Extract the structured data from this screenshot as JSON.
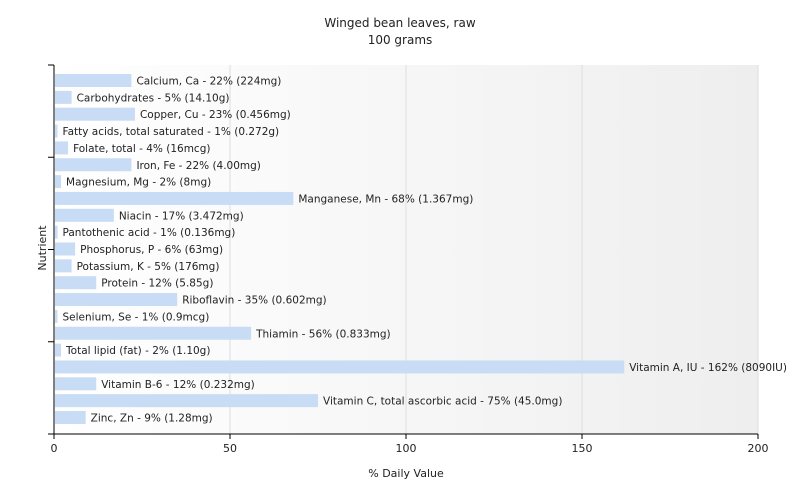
{
  "chart_data": {
    "type": "bar",
    "orientation": "horizontal",
    "title": "Winged bean leaves, raw",
    "subtitle": "100 grams",
    "xlabel": "% Daily Value",
    "ylabel": "Nutrient",
    "xlim": [
      0,
      200
    ],
    "xticks": [
      0,
      50,
      100,
      150,
      200
    ],
    "grid": true,
    "bar_color": "#c8dcf5",
    "categories": [
      "Calcium, Ca",
      "Carbohydrates",
      "Copper, Cu",
      "Fatty acids, total saturated",
      "Folate, total",
      "Iron, Fe",
      "Magnesium, Mg",
      "Manganese, Mn",
      "Niacin",
      "Pantothenic acid",
      "Phosphorus, P",
      "Potassium, K",
      "Protein",
      "Riboflavin",
      "Selenium, Se",
      "Thiamin",
      "Total lipid (fat)",
      "Vitamin A, IU",
      "Vitamin B-6",
      "Vitamin C, total ascorbic acid",
      "Zinc, Zn"
    ],
    "values": [
      22,
      5,
      23,
      1,
      4,
      22,
      2,
      68,
      17,
      1,
      6,
      5,
      12,
      35,
      1,
      56,
      2,
      162,
      12,
      75,
      9
    ],
    "data_labels": [
      "Calcium, Ca - 22% (224mg)",
      "Carbohydrates - 5% (14.10g)",
      "Copper, Cu - 23% (0.456mg)",
      "Fatty acids, total saturated - 1% (0.272g)",
      "Folate, total - 4% (16mcg)",
      "Iron, Fe - 22% (4.00mg)",
      "Magnesium, Mg - 2% (8mg)",
      "Manganese, Mn - 68% (1.367mg)",
      "Niacin - 17% (3.472mg)",
      "Pantothenic acid - 1% (0.136mg)",
      "Phosphorus, P - 6% (63mg)",
      "Potassium, K - 5% (176mg)",
      "Protein - 12% (5.85g)",
      "Riboflavin - 35% (0.602mg)",
      "Selenium, Se - 1% (0.9mcg)",
      "Thiamin - 56% (0.833mg)",
      "Total lipid (fat) - 2% (1.10g)",
      "Vitamin A, IU - 162% (8090IU)",
      "Vitamin B-6 - 12% (0.232mg)",
      "Vitamin C, total ascorbic acid - 75% (45.0mg)",
      "Zinc, Zn - 9% (1.28mg)"
    ]
  }
}
